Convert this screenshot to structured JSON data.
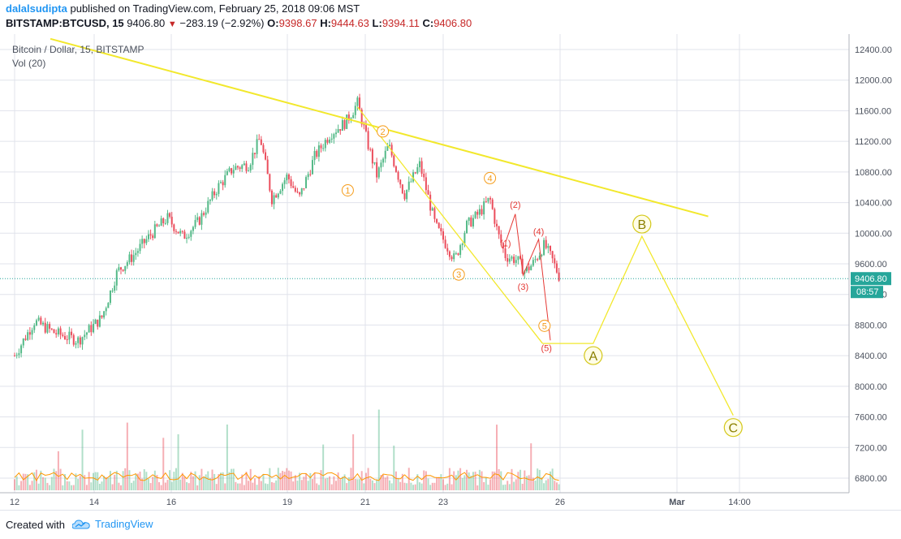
{
  "header": {
    "author": "dalalsudipta",
    "published_text": "published on TradingView.com, February 25, 2018 09:06 MST",
    "symbol": "BITSTAMP:BTCUSD, 15",
    "last": "9406.80",
    "change": "−283.19 (−2.92%)",
    "o_label": "O:",
    "o_value": "9398.67",
    "h_label": "H:",
    "h_value": "9444.63",
    "l_label": "L:",
    "l_value": "9394.11",
    "c_label": "C:",
    "c_value": "9406.80"
  },
  "legend": {
    "title": "Bitcoin / Dollar, 15, BITSTAMP",
    "volume": "Vol (20)"
  },
  "price_tags": {
    "price": "9406.80",
    "countdown": "08:57"
  },
  "footer": {
    "created_with": "Created with",
    "brand": "TradingView"
  },
  "colors": {
    "up": "#53b987",
    "down": "#eb4d5c",
    "trend": "#f2e82c",
    "wave_orange": "#f59c1a",
    "wave_red": "#e53935",
    "price_line": "#26a69a"
  },
  "chart_data": {
    "type": "candlestick",
    "title": "Bitcoin / Dollar, 15, BITSTAMP",
    "y_axis": {
      "ticks": [
        "12400.00",
        "12000.00",
        "11600.00",
        "11200.00",
        "10800.00",
        "10400.00",
        "10000.00",
        "9600.00",
        "9200.00",
        "8800.00",
        "8400.00",
        "8000.00",
        "7600.00",
        "7200.00",
        "6800.00"
      ],
      "range": [
        6600,
        12600
      ]
    },
    "x_axis": {
      "ticks": [
        "12",
        "14",
        "16",
        "19",
        "21",
        "23",
        "26",
        "Mar",
        "14:00"
      ]
    },
    "last_price": 9406.8,
    "price_path": [
      {
        "d": 12.0,
        "p": 8400
      },
      {
        "d": 12.5,
        "p": 8850
      },
      {
        "d": 13.0,
        "p": 8700
      },
      {
        "d": 13.6,
        "p": 8600
      },
      {
        "d": 14.2,
        "p": 8900
      },
      {
        "d": 14.6,
        "p": 9500
      },
      {
        "d": 15.0,
        "p": 9700
      },
      {
        "d": 15.5,
        "p": 10000
      },
      {
        "d": 15.9,
        "p": 10200
      },
      {
        "d": 16.3,
        "p": 9950
      },
      {
        "d": 16.7,
        "p": 10150
      },
      {
        "d": 17.2,
        "p": 10600
      },
      {
        "d": 17.6,
        "p": 10850
      },
      {
        "d": 18.0,
        "p": 10900
      },
      {
        "d": 18.3,
        "p": 11250
      },
      {
        "d": 18.6,
        "p": 10450
      },
      {
        "d": 19.0,
        "p": 10750
      },
      {
        "d": 19.3,
        "p": 10450
      },
      {
        "d": 19.7,
        "p": 11000
      },
      {
        "d": 20.1,
        "p": 11300
      },
      {
        "d": 20.5,
        "p": 11450
      },
      {
        "d": 20.8,
        "p": 11700
      },
      {
        "d": 21.1,
        "p": 11100
      },
      {
        "d": 21.3,
        "p": 10750
      },
      {
        "d": 21.6,
        "p": 11150
      },
      {
        "d": 22.0,
        "p": 10500
      },
      {
        "d": 22.4,
        "p": 10900
      },
      {
        "d": 22.8,
        "p": 10100
      },
      {
        "d": 23.3,
        "p": 9650
      },
      {
        "d": 23.6,
        "p": 10100
      },
      {
        "d": 23.9,
        "p": 10250
      },
      {
        "d": 24.2,
        "p": 10450
      },
      {
        "d": 24.4,
        "p": 10000
      },
      {
        "d": 24.6,
        "p": 9700
      },
      {
        "d": 24.9,
        "p": 9650
      },
      {
        "d": 25.1,
        "p": 9500
      },
      {
        "d": 25.3,
        "p": 9600
      },
      {
        "d": 25.6,
        "p": 9850
      },
      {
        "d": 25.8,
        "p": 9650
      },
      {
        "d": 26.0,
        "p": 9406.8
      }
    ],
    "trend_lines": [
      {
        "name": "descending-resistance",
        "from": {
          "d": 12.9,
          "p": 12540
        },
        "to": {
          "d": 29.5,
          "p": 10220
        }
      },
      {
        "name": "wave-channel",
        "from": {
          "d": 20.8,
          "p": 11650
        },
        "to": {
          "d": 25.55,
          "p": 8560
        }
      }
    ],
    "projection_path": [
      {
        "d": 26.85,
        "p": 8560,
        "label": "A"
      },
      {
        "d": 28.1,
        "p": 9960,
        "label": "B"
      },
      {
        "d": 29.9,
        "p": 7620,
        "label": "C"
      }
    ],
    "wave_labels_orange": [
      {
        "text": "1",
        "d": 20.55,
        "p": 10560
      },
      {
        "text": "2",
        "d": 21.45,
        "p": 11330
      },
      {
        "text": "3",
        "d": 23.4,
        "p": 9460
      },
      {
        "text": "4",
        "d": 24.2,
        "p": 10720
      },
      {
        "text": "5",
        "d": 25.6,
        "p": 8790
      }
    ],
    "wave_labels_red": [
      {
        "text": "(1)",
        "d": 24.6,
        "p": 9830
      },
      {
        "text": "(2)",
        "d": 24.85,
        "p": 10330
      },
      {
        "text": "(3)",
        "d": 25.05,
        "p": 9260
      },
      {
        "text": "(4)",
        "d": 25.45,
        "p": 9980
      },
      {
        "text": "(5)",
        "d": 25.65,
        "p": 8460
      }
    ],
    "red_subwave": [
      {
        "d": 24.6,
        "p": 9880
      },
      {
        "d": 24.85,
        "p": 10250
      },
      {
        "d": 25.05,
        "p": 9450
      },
      {
        "d": 25.45,
        "p": 9920
      },
      {
        "d": 25.75,
        "p": 8600
      }
    ]
  }
}
